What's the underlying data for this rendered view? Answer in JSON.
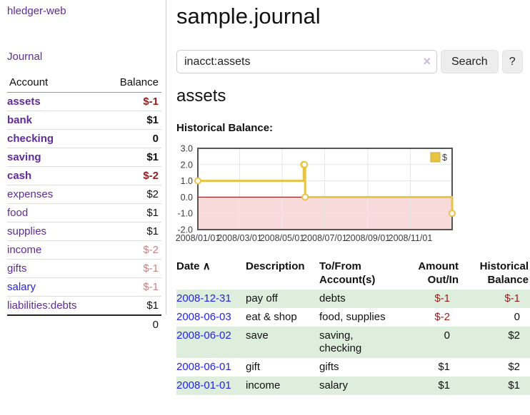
{
  "app": {
    "brand": "hledger-web"
  },
  "nav": {
    "journal": "Journal"
  },
  "sidebar": {
    "header": {
      "account": "Account",
      "balance": "Balance"
    },
    "accounts": [
      {
        "name": "assets",
        "balance": "$-1"
      },
      {
        "name": "bank",
        "balance": "$1"
      },
      {
        "name": "checking",
        "balance": "0"
      },
      {
        "name": "saving",
        "balance": "$1"
      },
      {
        "name": "cash",
        "balance": "$-2"
      },
      {
        "name": "expenses",
        "balance": "$2"
      },
      {
        "name": "food",
        "balance": "$1"
      },
      {
        "name": "supplies",
        "balance": "$1"
      },
      {
        "name": "income",
        "balance": "$-2"
      },
      {
        "name": "gifts",
        "balance": "$-1"
      },
      {
        "name": "salary",
        "balance": "$-1"
      },
      {
        "name": "liabilities:debts",
        "balance": "$1"
      }
    ],
    "total": "0"
  },
  "main": {
    "title": "sample.journal",
    "search": {
      "value": "inacct:assets",
      "clear_icon": "×",
      "search_button": "Search",
      "help_button": "?"
    },
    "heading": "assets",
    "chart_title": "Historical Balance:"
  },
  "chart_data": {
    "type": "line",
    "step": true,
    "title": "Historical Balance",
    "x_range": [
      "2008-01-01",
      "2008-12-31"
    ],
    "ylim": [
      -2,
      3
    ],
    "series": [
      {
        "name": "$",
        "color": "#e9c344",
        "points": [
          [
            "2008-01-01",
            1
          ],
          [
            "2008-06-01",
            2
          ],
          [
            "2008-06-02",
            2
          ],
          [
            "2008-06-03",
            0
          ],
          [
            "2008-12-31",
            -1
          ]
        ]
      }
    ],
    "y_ticks": [
      {
        "v": 3,
        "label": "3.0"
      },
      {
        "v": 2,
        "label": "2.0"
      },
      {
        "v": 1,
        "label": "1.0"
      },
      {
        "v": 0,
        "label": "0.0"
      },
      {
        "v": -1,
        "label": "-1.0"
      },
      {
        "v": -2,
        "label": "-2.0"
      }
    ],
    "x_ticks": [
      {
        "d": "2008-01-01",
        "label": "2008/01/01"
      },
      {
        "d": "2008-03-01",
        "label": "2008/03/01"
      },
      {
        "d": "2008-05-01",
        "label": "2008/05/01"
      },
      {
        "d": "2008-07-01",
        "label": "2008/07/01"
      },
      {
        "d": "2008-09-01",
        "label": "2008/09/01"
      },
      {
        "d": "2008-11-01",
        "label": "2008/11/01"
      }
    ],
    "legend": {
      "label": "$",
      "position": "top-right"
    },
    "grid": true,
    "colors": {
      "line": "#e9c344",
      "zero_line": "#8b0000",
      "negative_region": "#f9dada",
      "border": "#545454",
      "gridline": "#e6e6e6"
    }
  },
  "register": {
    "headers": {
      "date": "Date",
      "sort_indicator": "∧",
      "description": "Description",
      "accounts": "To/From Account(s)",
      "amount": "Amount Out/In",
      "balance": "Historical Balance"
    },
    "rows": [
      {
        "date": "2008-12-31",
        "description": "pay off",
        "accounts": "debts",
        "amount": "$-1",
        "balance": "$-1"
      },
      {
        "date": "2008-06-03",
        "description": "eat & shop",
        "accounts": "food, supplies",
        "amount": "$-2",
        "balance": "0"
      },
      {
        "date": "2008-06-02",
        "description": "save",
        "accounts": "saving, checking",
        "amount": "0",
        "balance": "$2"
      },
      {
        "date": "2008-06-01",
        "description": "gift",
        "accounts": "gifts",
        "amount": "$1",
        "balance": "$2"
      },
      {
        "date": "2008-01-01",
        "description": "income",
        "accounts": "salary",
        "amount": "$1",
        "balance": "$1"
      }
    ]
  }
}
